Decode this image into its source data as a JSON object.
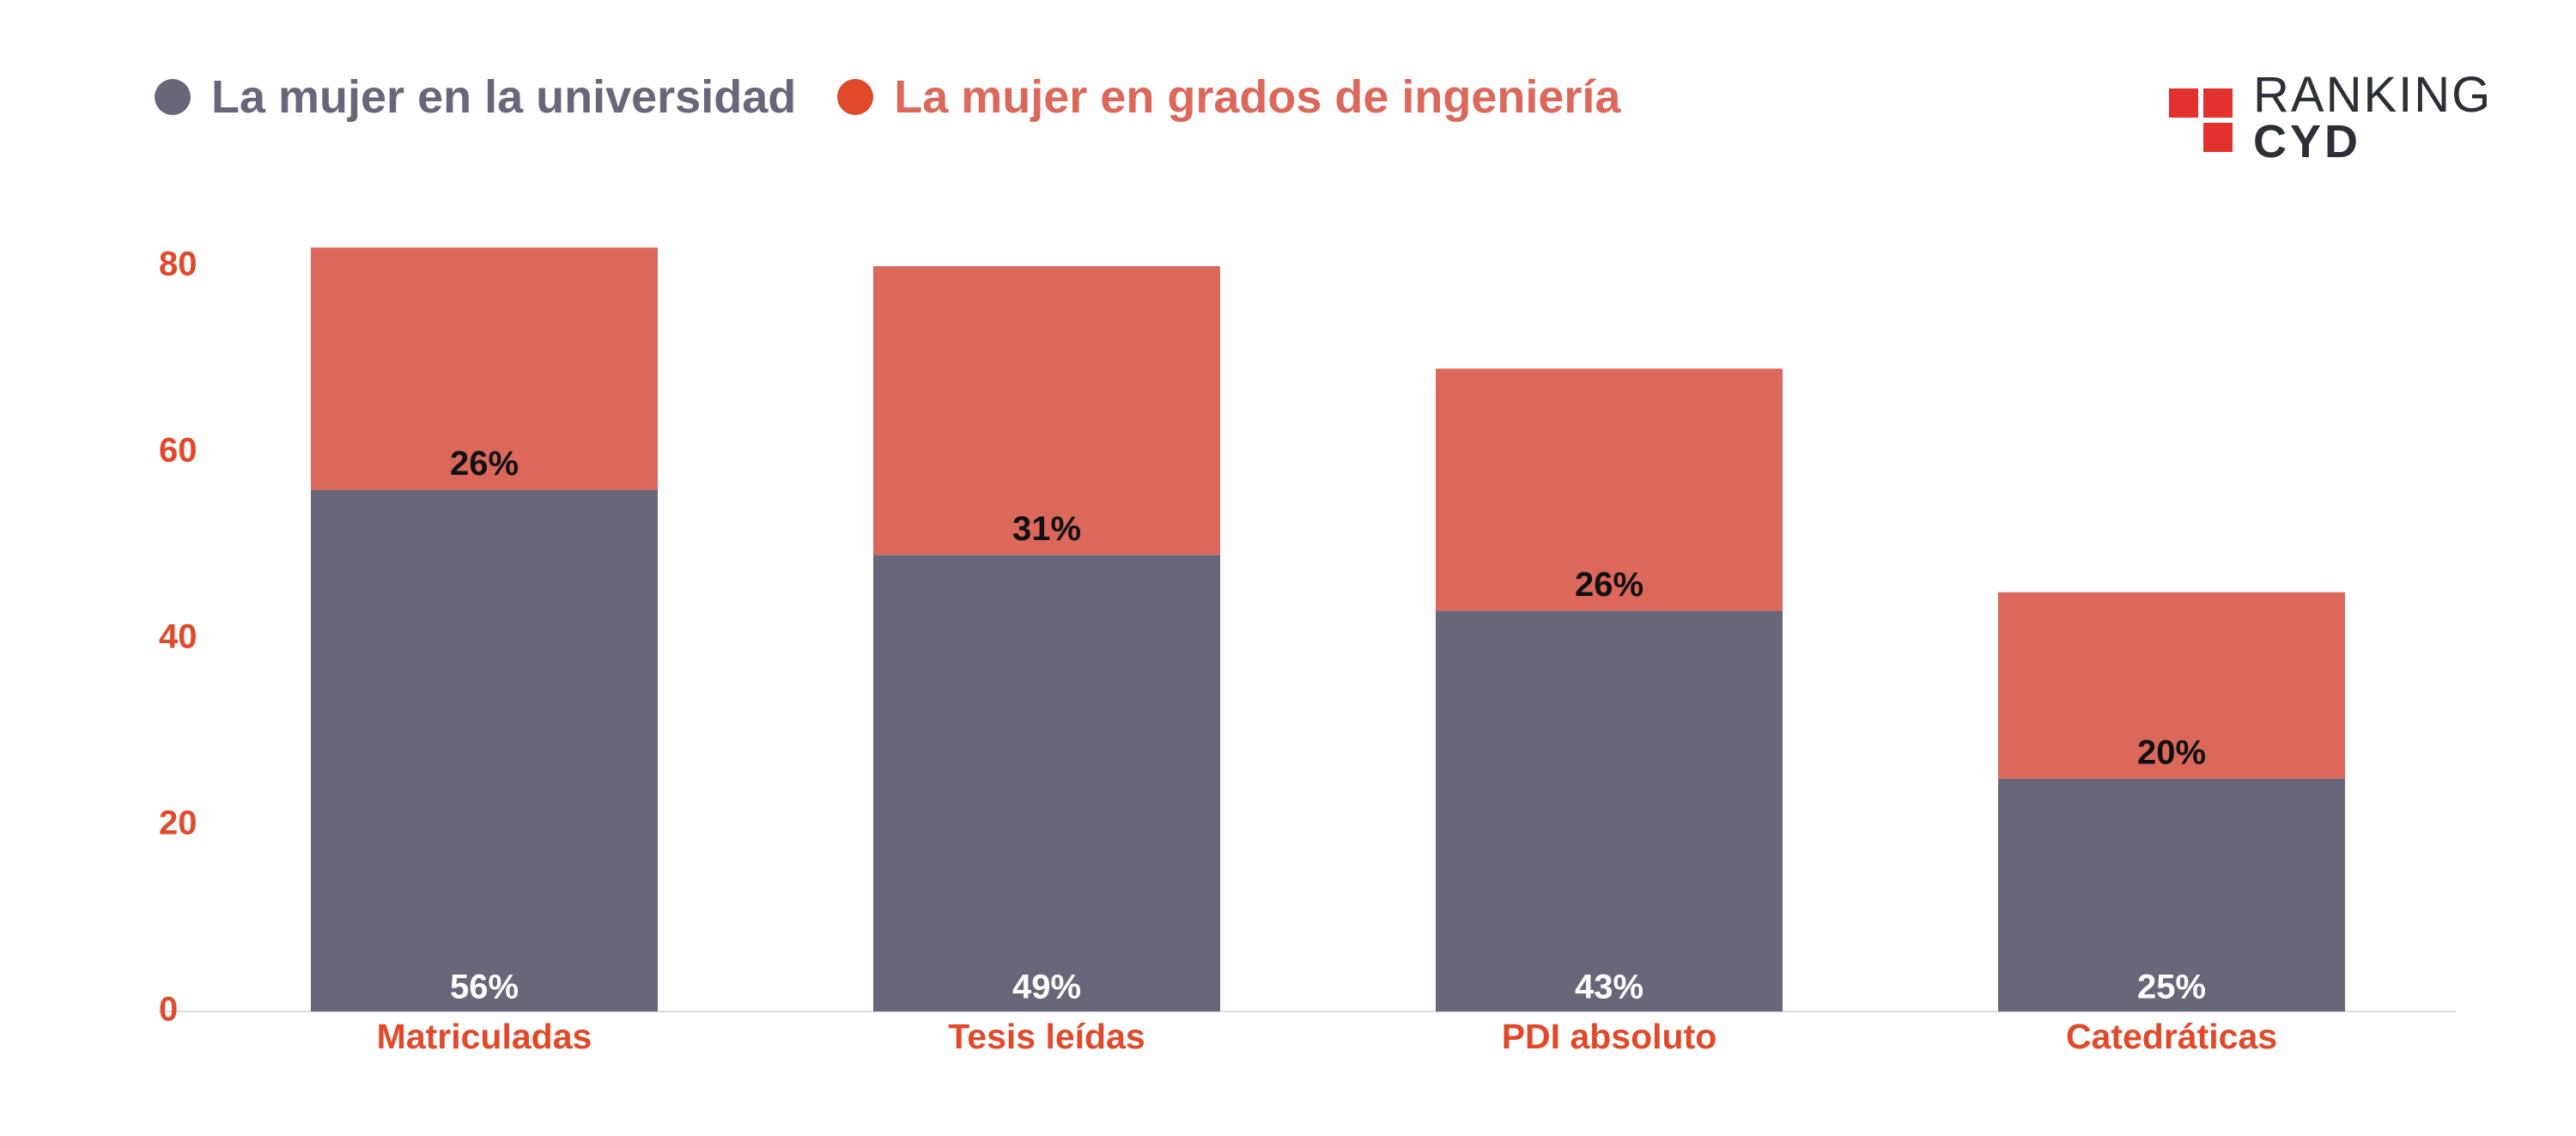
{
  "legend": {
    "series1_label": "La mujer en la universidad",
    "series2_label": "La mujer en grados de ingeniería"
  },
  "logo": {
    "line1": "RANKING",
    "line2": "CYD"
  },
  "colors": {
    "series1": "#676779",
    "series2": "#dc685b",
    "axis_text": "#e04a2b",
    "legend1_text": "#676779",
    "legend2_text": "#dc685b",
    "logo_red": "#e3312d",
    "label_dark": "#111111",
    "label_light": "#ffffff"
  },
  "chart_data": {
    "type": "bar",
    "stacked": true,
    "categories": [
      "Matriculadas",
      "Tesis leídas",
      "PDI absoluto",
      "Catedráticas"
    ],
    "series": [
      {
        "name": "La mujer en la universidad",
        "values": [
          56,
          49,
          43,
          25
        ],
        "labels": [
          "56%",
          "49%",
          "43%",
          "25%"
        ]
      },
      {
        "name": "La mujer en grados de ingeniería",
        "values": [
          26,
          31,
          26,
          20
        ],
        "labels": [
          "26%",
          "31%",
          "26%",
          "20%"
        ]
      }
    ],
    "yticks": [
      0,
      20,
      40,
      60,
      80
    ],
    "ylim": [
      0,
      82
    ],
    "title": "",
    "xlabel": "",
    "ylabel": "",
    "grid": false,
    "legend_position": "top-left"
  }
}
